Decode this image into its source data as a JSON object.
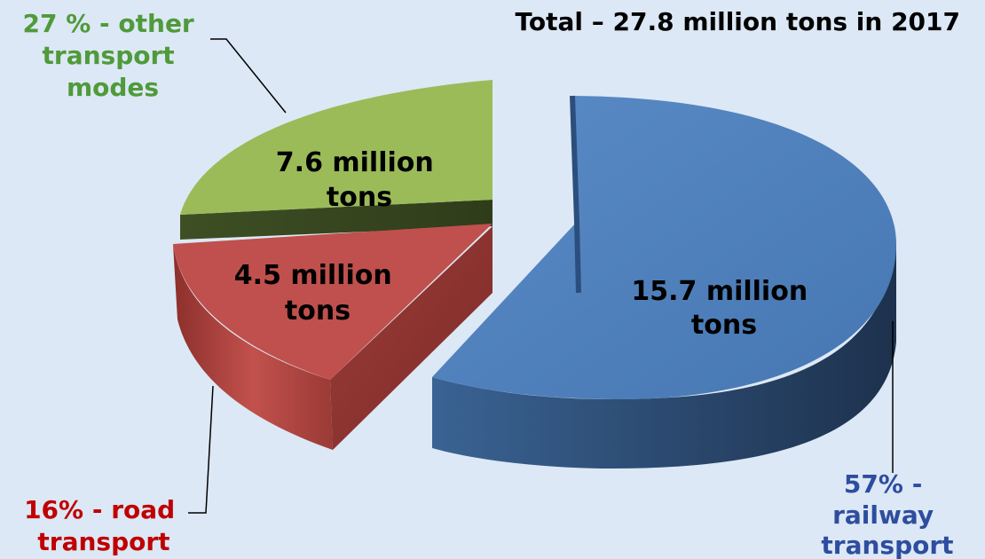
{
  "chart_data": {
    "type": "pie",
    "style": "3d-exploded",
    "title": "Total – 27.8 million tons in 2017",
    "unit": "million tons",
    "total": 27.8,
    "year": 2017,
    "slices": [
      {
        "key": "railway",
        "value": 15.7,
        "percent": 57,
        "value_label": [
          "15.7 million",
          "tons"
        ],
        "category_label": [
          "57% -",
          "railway",
          "transport"
        ],
        "color": "#4f81bd",
        "label_color": "#2e4d9f"
      },
      {
        "key": "road",
        "value": 4.5,
        "percent": 16,
        "value_label": [
          "4.5 million",
          "tons"
        ],
        "category_label": [
          "16% - road",
          "transport"
        ],
        "color": "#c0504d",
        "label_color": "#c00000"
      },
      {
        "key": "other",
        "value": 7.6,
        "percent": 27,
        "value_label": [
          "7.6 million",
          "tons"
        ],
        "category_label": [
          "27 % - other",
          "transport",
          "modes"
        ],
        "color": "#9bbb59",
        "label_color": "#4f9a3a"
      }
    ]
  }
}
